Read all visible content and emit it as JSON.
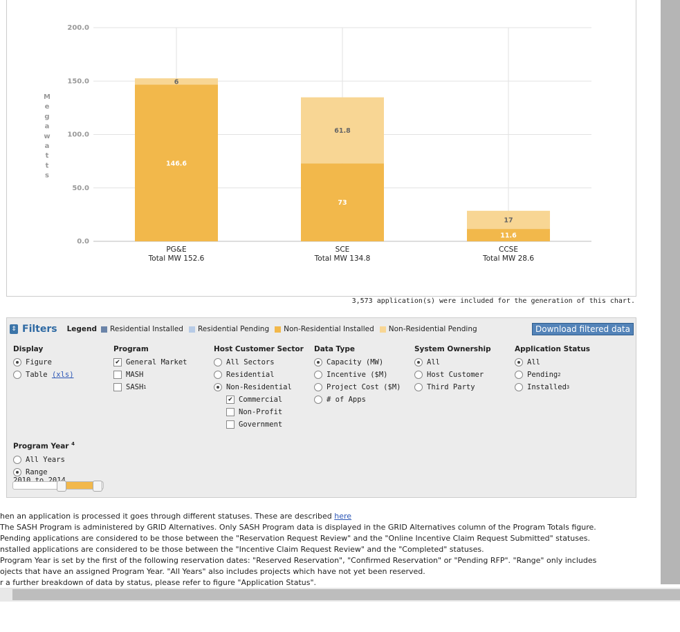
{
  "chart_data": {
    "type": "bar",
    "stacked": true,
    "ylabel": "Megawatts",
    "ylim": [
      0,
      200
    ],
    "yticks": [
      "0.0",
      "50.0",
      "100.0",
      "150.0",
      "200.0"
    ],
    "grid": true,
    "categories": [
      "PG&E",
      "SCE",
      "CCSE"
    ],
    "category_totals": [
      "Total MW 152.6",
      "Total MW 134.8",
      "Total MW 28.6"
    ],
    "series": [
      {
        "name": "Non-Residential Installed",
        "color": "#f2b84b",
        "values": [
          146.6,
          73,
          11.6
        ],
        "labels": [
          "146.6",
          "73",
          "11.6"
        ]
      },
      {
        "name": "Non-Residential Pending",
        "color": "#f8d694",
        "values": [
          6,
          61.8,
          17
        ],
        "labels": [
          "6",
          "61.8",
          "17"
        ]
      }
    ]
  },
  "apps_note": "3,573 application(s) were included for the generation of this chart.",
  "filters": {
    "title": "Filters",
    "legend_label": "Legend",
    "legend": [
      {
        "label": "Residential Installed",
        "color": "#6b84a8"
      },
      {
        "label": "Residential Pending",
        "color": "#b7cbe6"
      },
      {
        "label": "Non-Residential Installed",
        "color": "#f2b84b"
      },
      {
        "label": "Non-Residential Pending",
        "color": "#f8d694"
      }
    ],
    "download_label": "Download filtered data",
    "display": {
      "title": "Display",
      "figure": "Figure",
      "table": "Table",
      "table_link": "(xls)"
    },
    "program": {
      "title": "Program",
      "general": "General Market",
      "mash": "MASH",
      "sash": "SASH",
      "sash_sup": "1"
    },
    "sector": {
      "title": "Host Customer Sector",
      "all": "All Sectors",
      "residential": "Residential",
      "nonres": "Non-Residential",
      "commercial": "Commercial",
      "nonprofit": "Non-Profit",
      "government": "Government"
    },
    "datatype": {
      "title": "Data Type",
      "capacity": "Capacity (MW)",
      "incentive": "Incentive ($M)",
      "cost": "Project Cost ($M)",
      "apps": "# of Apps"
    },
    "ownership": {
      "title": "System Ownership",
      "all": "All",
      "host": "Host Customer",
      "third": "Third Party"
    },
    "status": {
      "title": "Application Status",
      "all": "All",
      "pending": "Pending",
      "pending_sup": "2",
      "installed": "Installed",
      "installed_sup": "3"
    },
    "year": {
      "title": "Program Year",
      "title_sup": "4",
      "all": "All Years",
      "range": "Range",
      "range_value": "2010 to 2014",
      "slider_start_fraction": 0.53,
      "slider_end_fraction": 0.93
    }
  },
  "footnotes": {
    "f1_text": "hen an application is processed it goes through different statuses. These are described ",
    "f1_link": "here",
    "f2": "The SASH Program is administered by GRID Alternatives. Only SASH Program data is displayed in the GRID Alternatives column of the Program Totals figure.",
    "f3": "Pending applications are considered to be those between the \"Reservation Request Review\" and the \"Online Incentive Claim Request Submitted\" statuses.",
    "f4": "nstalled applications are considered to be those between the \"Incentive Claim Request Review\" and the \"Completed\" statuses.",
    "f5": "Program Year is set by the first of the following reservation dates: \"Reserved Reservation\", \"Confirmed Reservation\" or \"Pending RFP\". \"Range\" only includes",
    "f6": "ojects that have an assigned Program Year. \"All Years\" also includes projects which have not yet been reserved.",
    "f7": "r a further breakdown of data by status, please refer to figure \"Application Status\"."
  }
}
